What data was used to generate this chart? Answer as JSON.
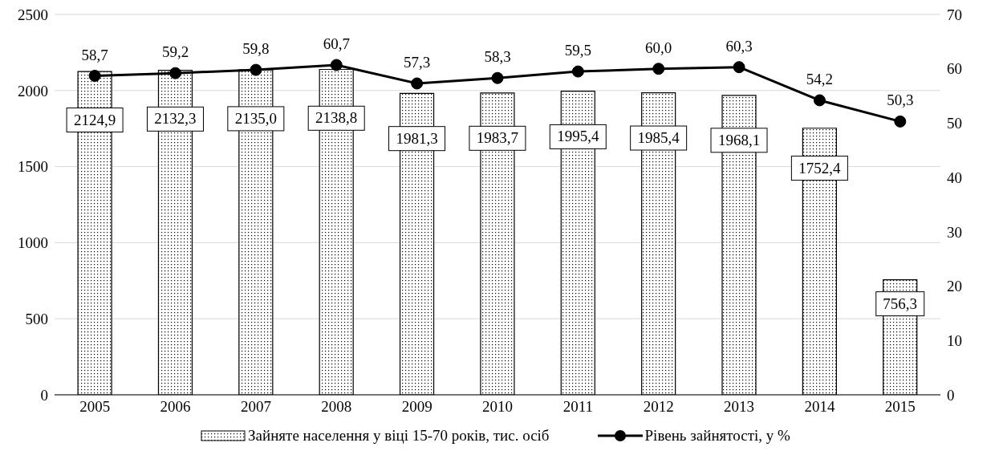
{
  "chart_data": {
    "type": "bar",
    "categories": [
      "2005",
      "2006",
      "2007",
      "2008",
      "2009",
      "2010",
      "2011",
      "2012",
      "2013",
      "2014",
      "2015"
    ],
    "series": [
      {
        "name": "Зайняте населення у віці 15-70 років, тис. осіб",
        "color": "#000000",
        "values": [
          2124.9,
          2132.3,
          2135.0,
          2138.8,
          1981.3,
          1983.7,
          1995.4,
          1985.4,
          1968.1,
          1752.4,
          756.3
        ],
        "value_labels": [
          "2124,9",
          "2132,3",
          "2135,0",
          "2138,8",
          "1981,3",
          "1983,7",
          "1995,4",
          "1985,4",
          "1968,1",
          "1752,4",
          "756,3"
        ]
      },
      {
        "name": "Рівень зайнятості, у %",
        "type": "line",
        "axis": "y2",
        "color": "#000000",
        "values": [
          58.7,
          59.2,
          59.8,
          60.7,
          57.3,
          58.3,
          59.5,
          60.0,
          60.3,
          54.2,
          50.3
        ],
        "value_labels": [
          "58,7",
          "59,2",
          "59,8",
          "60,7",
          "57,3",
          "58,3",
          "59,5",
          "60,0",
          "60,3",
          "54,2",
          "50,3"
        ]
      }
    ],
    "ylim": [
      0,
      2500
    ],
    "yticks": [
      0,
      500,
      1000,
      1500,
      2000,
      2500
    ],
    "y2lim": [
      0,
      70
    ],
    "y2ticks": [
      0,
      10,
      20,
      30,
      40,
      50,
      60,
      70
    ],
    "grid": "y",
    "legend": "bottom",
    "marker": "circle",
    "line_style": "solid"
  }
}
